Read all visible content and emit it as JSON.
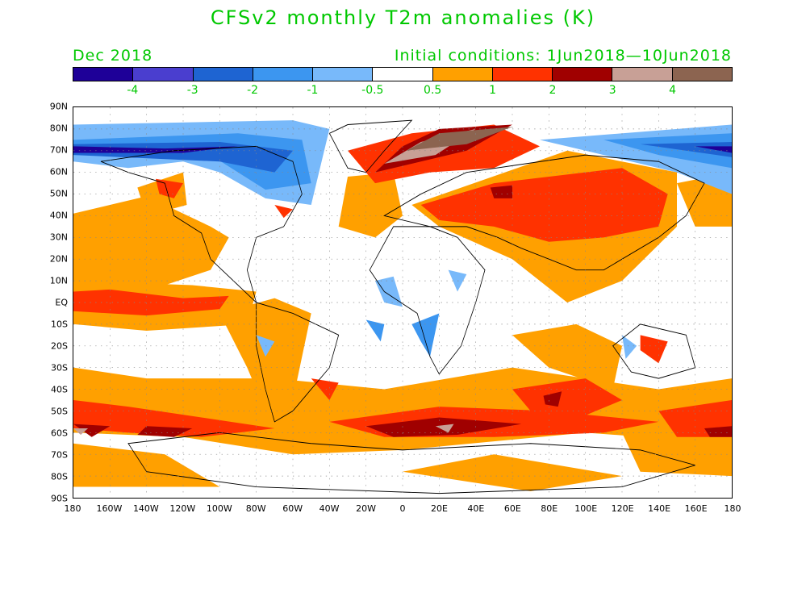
{
  "title": "CFSv2 monthly T2m anomalies (K)",
  "valid_month": "Dec 2018",
  "initial_conditions": "Initial conditions: 1Jun2018—10Jun2018",
  "colorbar": {
    "colors": [
      "#1e0098",
      "#4a3ecf",
      "#1e64d2",
      "#3c96f0",
      "#78b9fa",
      "#ffffff",
      "#ffa000",
      "#ff3200",
      "#a00000",
      "#c8a096",
      "#8c6450"
    ],
    "labels": [
      "-4",
      "-3",
      "-2",
      "-1",
      "-0.5",
      "0.5",
      "1",
      "2",
      "3",
      "4"
    ]
  },
  "latitude_labels": [
    "90N",
    "80N",
    "70N",
    "60N",
    "50N",
    "40N",
    "30N",
    "20N",
    "10N",
    "EQ",
    "10S",
    "20S",
    "30S",
    "40S",
    "50S",
    "60S",
    "70S",
    "80S",
    "90S"
  ],
  "longitude_labels": [
    "180",
    "160W",
    "140W",
    "120W",
    "100W",
    "80W",
    "60W",
    "40W",
    "20W",
    "0",
    "20E",
    "40E",
    "60E",
    "80E",
    "100E",
    "120E",
    "140E",
    "160E",
    "180"
  ]
}
